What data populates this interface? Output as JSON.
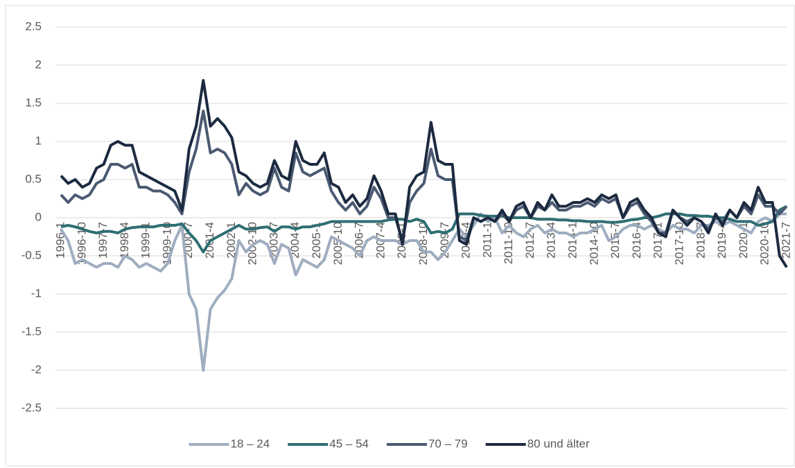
{
  "chart_data": {
    "type": "line",
    "categories": [
      "1996-1",
      null,
      null,
      "1996-10",
      null,
      null,
      "1997-7",
      null,
      null,
      "1998-4",
      null,
      null,
      "1999-1",
      null,
      null,
      "1999-10",
      null,
      null,
      "2000-7",
      null,
      null,
      "2001-4",
      null,
      null,
      "2002-1",
      null,
      null,
      "2002-10",
      null,
      null,
      "2003-7",
      null,
      null,
      "2004-4",
      null,
      null,
      "2005-1",
      null,
      null,
      "2005-10",
      null,
      null,
      "2006-7",
      null,
      null,
      "2007-4",
      null,
      null,
      "2008-1",
      null,
      null,
      "2008-10",
      null,
      null,
      "2009-7",
      null,
      null,
      "2010-4",
      null,
      null,
      "2011-1",
      null,
      null,
      "2011-10",
      null,
      null,
      "2012-7",
      null,
      null,
      "2013-4",
      null,
      null,
      "2014-1",
      null,
      null,
      "2014-10",
      null,
      null,
      "2015-7",
      null,
      null,
      "2016-4",
      null,
      null,
      "2017-1",
      null,
      null,
      "2017-10",
      null,
      null,
      "2018-7",
      null,
      null,
      "2019-4",
      null,
      null,
      "2020-1",
      null,
      null,
      "2020-10",
      null,
      null,
      "2021-7"
    ],
    "series": [
      {
        "name": "18 – 24",
        "color": "#9eadbf",
        "values": [
          -0.15,
          -0.3,
          -0.6,
          -0.55,
          -0.6,
          -0.65,
          -0.6,
          -0.6,
          -0.65,
          -0.5,
          -0.55,
          -0.65,
          -0.6,
          -0.65,
          -0.7,
          -0.6,
          -0.3,
          -0.1,
          -1.0,
          -1.2,
          -2.0,
          -1.2,
          -1.05,
          -0.95,
          -0.8,
          -0.3,
          -0.45,
          -0.35,
          -0.3,
          -0.35,
          -0.6,
          -0.35,
          -0.4,
          -0.75,
          -0.55,
          -0.6,
          -0.65,
          -0.55,
          -0.25,
          -0.3,
          -0.35,
          -0.4,
          -0.5,
          -0.3,
          -0.25,
          -0.3,
          -0.3,
          -0.3,
          -0.35,
          -0.3,
          -0.3,
          -0.45,
          -0.45,
          -0.55,
          -0.45,
          -0.3,
          -0.15,
          -0.25,
          -0.1,
          0.05,
          -0.05,
          0.0,
          -0.2,
          -0.1,
          -0.2,
          -0.25,
          -0.15,
          -0.1,
          -0.2,
          -0.15,
          -0.2,
          -0.2,
          -0.25,
          -0.2,
          -0.2,
          -0.15,
          -0.1,
          -0.3,
          -0.25,
          -0.15,
          -0.1,
          -0.1,
          -0.15,
          -0.1,
          -0.15,
          -0.2,
          -0.1,
          -0.15,
          -0.15,
          -0.2,
          -0.1,
          -0.1,
          -0.05,
          -0.1,
          -0.05,
          -0.1,
          -0.15,
          -0.2,
          -0.05,
          0.0,
          -0.05,
          0.05,
          0.05
        ]
      },
      {
        "name": "45 – 54",
        "color": "#2e6e73",
        "values": [
          -0.12,
          -0.1,
          -0.12,
          -0.15,
          -0.18,
          -0.2,
          -0.18,
          -0.18,
          -0.2,
          -0.15,
          -0.13,
          -0.12,
          -0.12,
          -0.12,
          -0.1,
          -0.1,
          -0.1,
          -0.08,
          -0.2,
          -0.3,
          -0.45,
          -0.3,
          -0.25,
          -0.2,
          -0.15,
          -0.1,
          -0.15,
          -0.15,
          -0.13,
          -0.12,
          -0.18,
          -0.12,
          -0.12,
          -0.15,
          -0.12,
          -0.12,
          -0.1,
          -0.08,
          -0.05,
          -0.05,
          -0.05,
          -0.05,
          -0.05,
          -0.05,
          -0.05,
          -0.05,
          -0.03,
          -0.02,
          -0.02,
          -0.05,
          -0.02,
          -0.05,
          -0.2,
          -0.18,
          -0.2,
          -0.15,
          0.05,
          0.05,
          0.05,
          0.03,
          0.02,
          0.02,
          0.02,
          0.0,
          0.0,
          0.0,
          0.0,
          -0.02,
          -0.02,
          -0.02,
          -0.03,
          -0.03,
          -0.04,
          -0.04,
          -0.05,
          -0.05,
          -0.05,
          -0.06,
          -0.06,
          -0.05,
          -0.03,
          -0.02,
          0.0,
          0.0,
          0.02,
          0.05,
          0.05,
          0.05,
          0.03,
          0.03,
          0.02,
          0.02,
          0.0,
          0.0,
          -0.02,
          -0.05,
          -0.05,
          -0.05,
          -0.1,
          -0.08,
          -0.05,
          0.1,
          0.15
        ]
      },
      {
        "name": "70 – 79",
        "color": "#4b5a72",
        "values": [
          0.3,
          0.2,
          0.3,
          0.25,
          0.3,
          0.45,
          0.5,
          0.7,
          0.7,
          0.65,
          0.7,
          0.4,
          0.4,
          0.35,
          0.35,
          0.3,
          0.2,
          0.05,
          0.6,
          0.9,
          1.4,
          0.85,
          0.9,
          0.85,
          0.7,
          0.3,
          0.45,
          0.35,
          0.3,
          0.35,
          0.65,
          0.4,
          0.35,
          0.85,
          0.6,
          0.55,
          0.6,
          0.65,
          0.35,
          0.2,
          0.1,
          0.2,
          0.05,
          0.15,
          0.4,
          0.25,
          0.0,
          0.0,
          -0.3,
          0.2,
          0.35,
          0.45,
          0.9,
          0.55,
          0.5,
          0.5,
          -0.25,
          -0.3,
          0.0,
          -0.05,
          0.0,
          -0.05,
          0.05,
          -0.05,
          0.1,
          0.15,
          0.0,
          0.15,
          0.1,
          0.2,
          0.1,
          0.1,
          0.15,
          0.15,
          0.2,
          0.15,
          0.25,
          0.2,
          0.25,
          0.0,
          0.15,
          0.2,
          0.05,
          -0.05,
          -0.2,
          -0.2,
          0.1,
          0.0,
          -0.05,
          0.0,
          -0.05,
          -0.15,
          0.0,
          -0.05,
          0.1,
          0.0,
          0.15,
          0.05,
          0.3,
          0.15,
          0.15,
          0.05,
          0.15
        ]
      },
      {
        "name": "80 und älter",
        "color": "#1c2a40",
        "values": [
          0.55,
          0.45,
          0.5,
          0.4,
          0.45,
          0.65,
          0.7,
          0.95,
          1.0,
          0.95,
          0.95,
          0.6,
          0.55,
          0.5,
          0.45,
          0.4,
          0.35,
          0.1,
          0.9,
          1.2,
          1.8,
          1.2,
          1.3,
          1.2,
          1.05,
          0.6,
          0.55,
          0.45,
          0.4,
          0.45,
          0.75,
          0.55,
          0.5,
          1.0,
          0.75,
          0.7,
          0.7,
          0.85,
          0.45,
          0.4,
          0.2,
          0.3,
          0.15,
          0.25,
          0.55,
          0.35,
          0.05,
          0.05,
          -0.35,
          0.4,
          0.55,
          0.6,
          1.25,
          0.75,
          0.7,
          0.7,
          -0.3,
          -0.35,
          0.0,
          -0.05,
          0.0,
          -0.05,
          0.1,
          -0.05,
          0.15,
          0.2,
          0.0,
          0.2,
          0.1,
          0.3,
          0.15,
          0.15,
          0.2,
          0.2,
          0.25,
          0.2,
          0.3,
          0.25,
          0.3,
          0.0,
          0.2,
          0.25,
          0.1,
          0.0,
          -0.2,
          -0.25,
          0.1,
          0.0,
          -0.1,
          0.0,
          -0.05,
          -0.2,
          0.05,
          -0.1,
          0.1,
          0.0,
          0.2,
          0.1,
          0.4,
          0.2,
          0.2,
          -0.5,
          -0.65
        ]
      }
    ],
    "ylim": [
      -2.5,
      2.5
    ],
    "yticks": [
      2.5,
      2,
      1.5,
      1,
      0.5,
      0,
      -0.5,
      -1,
      -1.5,
      -2,
      -2.5
    ],
    "grid": true,
    "legend": "bottom"
  }
}
